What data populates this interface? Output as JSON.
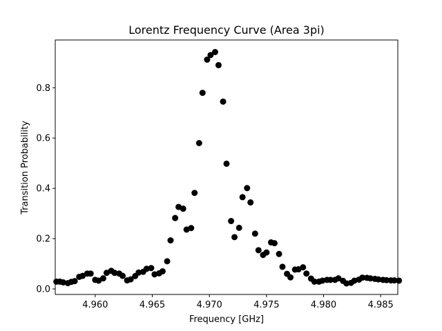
{
  "chart_data": {
    "type": "scatter",
    "title": "Lorentz Frequency Curve (Area 3pi)",
    "xlabel": "Frequency [GHz]",
    "ylabel": "Transition Probability",
    "xlim": [
      4.9565,
      4.9865
    ],
    "ylim": [
      -0.022,
      0.99
    ],
    "grid": false,
    "xticks": [
      4.96,
      4.965,
      4.97,
      4.975,
      4.98,
      4.985
    ],
    "xtick_labels": [
      "4.960",
      "4.965",
      "4.970",
      "4.975",
      "4.980",
      "4.985"
    ],
    "yticks": [
      0.0,
      0.2,
      0.4,
      0.6,
      0.8
    ],
    "ytick_labels": [
      "0.0",
      "0.2",
      "0.4",
      "0.6",
      "0.8"
    ],
    "marker_color": "#000000",
    "series": [
      {
        "x": [
          4.9566,
          4.9569,
          4.9572,
          4.9576,
          4.9579,
          4.9582,
          4.9586,
          4.9589,
          4.9593,
          4.9596,
          4.96,
          4.9603,
          4.9607,
          4.961,
          4.9614,
          4.9617,
          4.9621,
          4.9624,
          4.9628,
          4.9631,
          4.9635,
          4.9638,
          4.9642,
          4.9645,
          4.9649,
          4.9652,
          4.9656,
          4.9659,
          4.9663,
          4.9666,
          4.967,
          4.9673,
          4.9677,
          4.968,
          4.9684,
          4.9687,
          4.9691,
          4.9694,
          4.9698,
          4.9701,
          4.9705,
          4.9708,
          4.9712,
          4.9715,
          4.9719,
          4.9722,
          4.9726,
          4.9729,
          4.9733,
          4.9736,
          4.974,
          4.9743,
          4.9747,
          4.975,
          4.9754,
          4.9757,
          4.9761,
          4.9764,
          4.9768,
          4.9771,
          4.9775,
          4.9778,
          4.9782,
          4.9785,
          4.9789,
          4.9792,
          4.9796,
          4.9799,
          4.9803,
          4.9806,
          4.981,
          4.9813,
          4.9817,
          4.982,
          4.9824,
          4.9827,
          4.9831,
          4.9834,
          4.9838,
          4.9841,
          4.9845,
          4.9848,
          4.9852,
          4.9855,
          4.9859,
          4.9862,
          4.9866
        ],
        "y": [
          0.029,
          0.029,
          0.026,
          0.023,
          0.028,
          0.031,
          0.048,
          0.052,
          0.061,
          0.061,
          0.036,
          0.033,
          0.042,
          0.064,
          0.072,
          0.064,
          0.061,
          0.052,
          0.034,
          0.038,
          0.051,
          0.065,
          0.068,
          0.08,
          0.083,
          0.058,
          0.062,
          0.07,
          0.11,
          0.193,
          0.282,
          0.326,
          0.319,
          0.236,
          0.242,
          0.382,
          0.58,
          0.78,
          0.912,
          0.93,
          0.942,
          0.89,
          0.745,
          0.498,
          0.27,
          0.206,
          0.243,
          0.365,
          0.401,
          0.344,
          0.22,
          0.154,
          0.135,
          0.145,
          0.185,
          0.182,
          0.139,
          0.088,
          0.06,
          0.046,
          0.077,
          0.078,
          0.086,
          0.061,
          0.041,
          0.029,
          0.029,
          0.033,
          0.036,
          0.036,
          0.036,
          0.042,
          0.032,
          0.022,
          0.024,
          0.033,
          0.037,
          0.045,
          0.044,
          0.042,
          0.04,
          0.038,
          0.036,
          0.035,
          0.034,
          0.034,
          0.033
        ]
      }
    ]
  }
}
